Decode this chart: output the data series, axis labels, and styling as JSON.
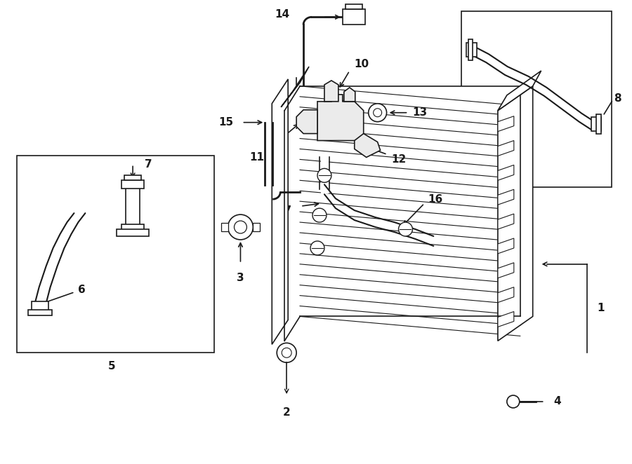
{
  "bg_color": "#ffffff",
  "line_color": "#1a1a1a",
  "fig_width": 9.0,
  "fig_height": 6.62,
  "dpi": 100
}
